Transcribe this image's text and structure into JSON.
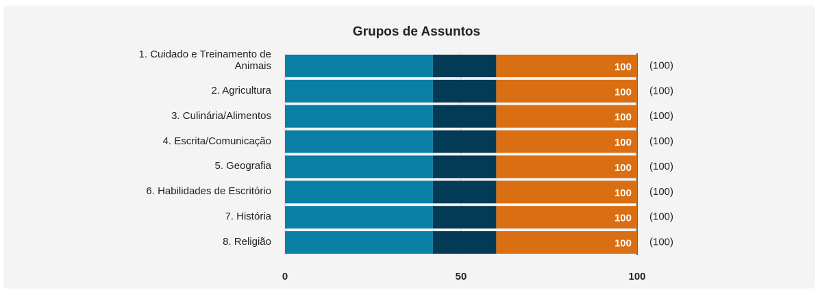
{
  "chart_data": {
    "type": "stacked-barh",
    "title": "Grupos de Assuntos",
    "categories": [
      "1. Cuidado e Treinamento de Animais",
      "2. Agricultura",
      "3. Culinária/Alimentos",
      "4. Escrita/Comunicação",
      "5. Geografia",
      "6. Habilidades de Escritório",
      "7. História",
      "8. Religião"
    ],
    "series": [
      {
        "color": "#0a7fa6",
        "values": [
          42,
          42,
          42,
          42,
          42,
          42,
          42,
          42
        ]
      },
      {
        "color": "#033a56",
        "values": [
          18,
          18,
          18,
          18,
          18,
          18,
          18,
          18
        ]
      },
      {
        "color": "#d96e12",
        "values": [
          40,
          40,
          40,
          40,
          40,
          40,
          40,
          40
        ]
      }
    ],
    "totals": [
      100,
      100,
      100,
      100,
      100,
      100,
      100,
      100
    ],
    "count_labels": [
      "(100)",
      "(100)",
      "(100)",
      "(100)",
      "(100)",
      "(100)",
      "(100)",
      "(100)"
    ],
    "xlim": [
      0,
      100
    ],
    "xticks": [
      0,
      50,
      100
    ],
    "grid": true
  }
}
